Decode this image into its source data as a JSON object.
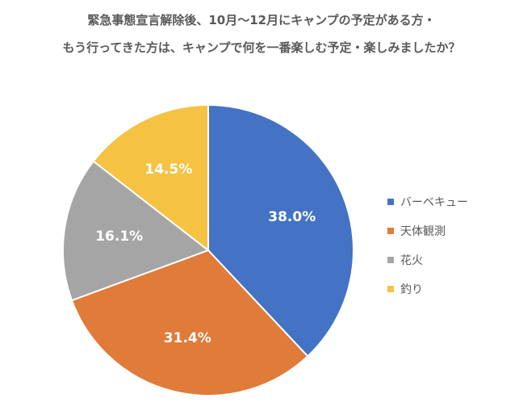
{
  "title_line1": "緊急事態宣言解除後、10月〜12月にキャンプの予定がある方・",
  "title_line2": "もう行ってきた方は、キャンプで何を一番楽しむ予定・楽しみましたか？",
  "chart_data": {
    "type": "pie",
    "title": "緊急事態宣言解除後、10月〜12月にキャンプの予定がある方・もう行ってきた方は、キャンプで何を一番楽しむ予定・楽しみましたか？",
    "categories": [
      "バーベキュー",
      "天体観測",
      "花火",
      "釣り"
    ],
    "values": [
      38.0,
      31.4,
      16.1,
      14.5
    ],
    "labels": [
      "38.0%",
      "31.4%",
      "16.1%",
      "14.5%"
    ],
    "colors": [
      "#4472C4",
      "#ED7D31",
      "#A5A5A5",
      "#FFC000"
    ],
    "legend_position": "right"
  },
  "legend": [
    {
      "label": "バーベキュー",
      "color": "#4472C4"
    },
    {
      "label": "天体観測",
      "color": "#E07B39"
    },
    {
      "label": "花火",
      "color": "#A5A5A5"
    },
    {
      "label": "釣り",
      "color": "#F5C242"
    }
  ],
  "slice_labels": [
    "38.0%",
    "31.4%",
    "16.1%",
    "14.5%"
  ]
}
